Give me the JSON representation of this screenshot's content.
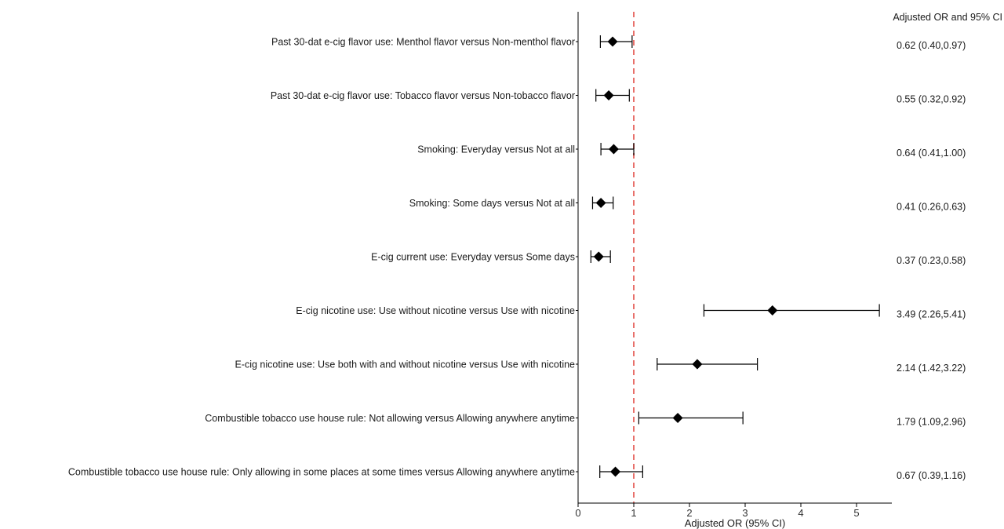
{
  "chart_data": {
    "type": "forest",
    "column_header": "Adjusted OR and 95% CI",
    "xlabel": "Adjusted OR (95% CI)",
    "xlim": [
      0,
      5.6
    ],
    "xticks": [
      0,
      1,
      2,
      3,
      4,
      5
    ],
    "reference_line": 1,
    "reference_color": "#e8706b",
    "marker_color": "#000000",
    "rows": [
      {
        "label": "Past 30-dat e-cig flavor use: Menthol flavor versus Non-menthol flavor",
        "or": 0.62,
        "lo": 0.4,
        "hi": 0.97,
        "text": "0.62 (0.40,0.97)"
      },
      {
        "label": "Past 30-dat e-cig flavor use: Tobacco flavor versus Non-tobacco flavor",
        "or": 0.55,
        "lo": 0.32,
        "hi": 0.92,
        "text": "0.55 (0.32,0.92)"
      },
      {
        "label": "Smoking: Everyday versus Not at all",
        "or": 0.64,
        "lo": 0.41,
        "hi": 1.0,
        "text": "0.64 (0.41,1.00)"
      },
      {
        "label": "Smoking: Some days versus Not at all",
        "or": 0.41,
        "lo": 0.26,
        "hi": 0.63,
        "text": "0.41 (0.26,0.63)"
      },
      {
        "label": "E-cig current use: Everyday versus Some days",
        "or": 0.37,
        "lo": 0.23,
        "hi": 0.58,
        "text": "0.37 (0.23,0.58)"
      },
      {
        "label": "E-cig nicotine use: Use without nicotine versus Use with nicotine",
        "or": 3.49,
        "lo": 2.26,
        "hi": 5.41,
        "text": "3.49 (2.26,5.41)"
      },
      {
        "label": "E-cig nicotine use: Use both with and without nicotine versus Use with nicotine",
        "or": 2.14,
        "lo": 1.42,
        "hi": 3.22,
        "text": "2.14 (1.42,3.22)"
      },
      {
        "label": "Combustible tobacco use house rule: Not allowing versus Allowing anywhere anytime",
        "or": 1.79,
        "lo": 1.09,
        "hi": 2.96,
        "text": "1.79 (1.09,2.96)"
      },
      {
        "label": "Combustible tobacco use house rule: Only allowing in some places at some times versus Allowing anywhere anytime",
        "or": 0.67,
        "lo": 0.39,
        "hi": 1.16,
        "text": "0.67 (0.39,1.16)"
      }
    ]
  }
}
